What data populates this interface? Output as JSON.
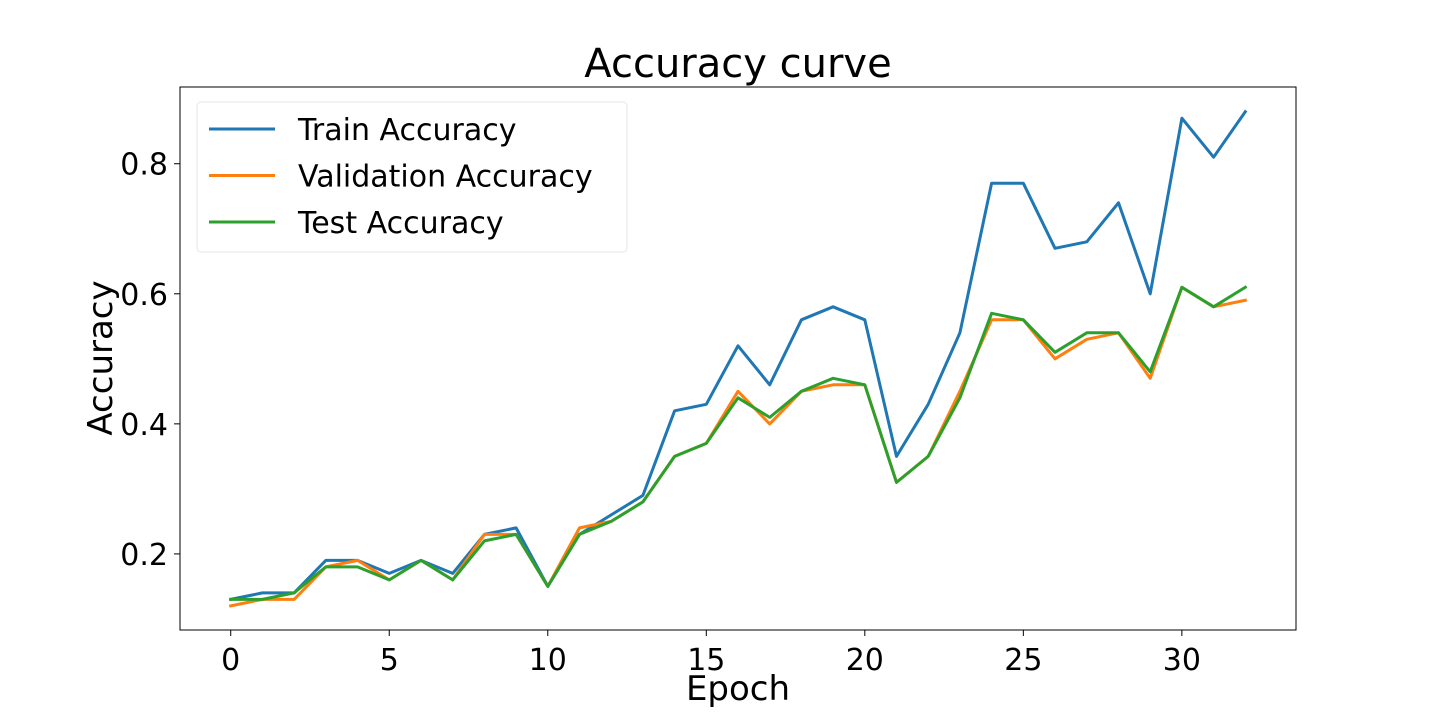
{
  "chart_data": {
    "type": "line",
    "title": "Accuracy curve",
    "xlabel": "Epoch",
    "ylabel": "Accuracy",
    "xlim": [
      -1.6,
      33.6
    ],
    "ylim": [
      0.083,
      0.918
    ],
    "xticks": [
      0,
      5,
      10,
      15,
      20,
      25,
      30
    ],
    "xtick_labels": [
      "0",
      "5",
      "10",
      "15",
      "20",
      "25",
      "30"
    ],
    "yticks": [
      0.2,
      0.4,
      0.6,
      0.8
    ],
    "ytick_labels": [
      "0.2",
      "0.4",
      "0.6",
      "0.8"
    ],
    "grid": false,
    "legend_position": "upper-left",
    "x": [
      0,
      1,
      2,
      3,
      4,
      5,
      6,
      7,
      8,
      9,
      10,
      11,
      12,
      13,
      14,
      15,
      16,
      17,
      18,
      19,
      20,
      21,
      22,
      23,
      24,
      25,
      26,
      27,
      28,
      29,
      30,
      31,
      32
    ],
    "series": [
      {
        "name": "Train Accuracy",
        "color": "#1f77b4",
        "values": [
          0.13,
          0.14,
          0.14,
          0.19,
          0.19,
          0.17,
          0.19,
          0.17,
          0.23,
          0.24,
          0.15,
          0.23,
          0.26,
          0.29,
          0.42,
          0.43,
          0.52,
          0.46,
          0.56,
          0.58,
          0.56,
          0.35,
          0.43,
          0.54,
          0.77,
          0.77,
          0.67,
          0.68,
          0.74,
          0.6,
          0.87,
          0.81,
          0.88
        ]
      },
      {
        "name": "Validation Accuracy",
        "color": "#ff7f0e",
        "values": [
          0.12,
          0.13,
          0.13,
          0.18,
          0.19,
          0.16,
          0.19,
          0.16,
          0.23,
          0.23,
          0.15,
          0.24,
          0.25,
          0.28,
          0.35,
          0.37,
          0.45,
          0.4,
          0.45,
          0.46,
          0.46,
          0.31,
          0.35,
          0.45,
          0.56,
          0.56,
          0.5,
          0.53,
          0.54,
          0.47,
          0.61,
          0.58,
          0.59
        ]
      },
      {
        "name": "Test Accuracy",
        "color": "#2ca02c",
        "values": [
          0.13,
          0.13,
          0.14,
          0.18,
          0.18,
          0.16,
          0.19,
          0.16,
          0.22,
          0.23,
          0.15,
          0.23,
          0.25,
          0.28,
          0.35,
          0.37,
          0.44,
          0.41,
          0.45,
          0.47,
          0.46,
          0.31,
          0.35,
          0.44,
          0.57,
          0.56,
          0.51,
          0.54,
          0.54,
          0.48,
          0.61,
          0.58,
          0.61
        ]
      }
    ]
  }
}
